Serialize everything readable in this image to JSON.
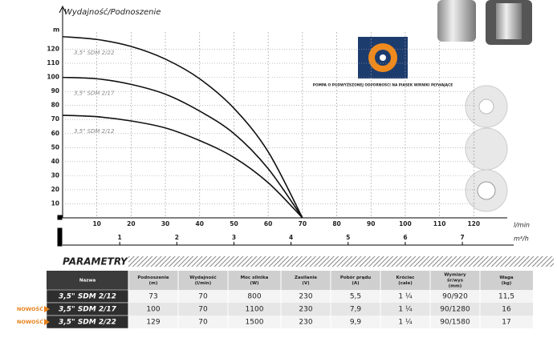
{
  "chart_data": {
    "type": "line",
    "title": "Wydajność/Podnoszenie",
    "y_label": "m",
    "x_label": "l/min",
    "x2_label": "m³/h",
    "x": [
      0,
      10,
      20,
      30,
      40,
      50,
      60,
      70
    ],
    "series": [
      {
        "name": "3,5\" SDM 2/22",
        "color": "#111111",
        "values": [
          129,
          127,
          122,
          113,
          99,
          78,
          47,
          0
        ]
      },
      {
        "name": "3,5\" SDM 2/17",
        "color": "#111111",
        "values": [
          100,
          99,
          95,
          88,
          76,
          60,
          35,
          0
        ]
      },
      {
        "name": "3,5\" SDM 2/12",
        "color": "#111111",
        "values": [
          73,
          72,
          69,
          64,
          55,
          43,
          25,
          0
        ]
      }
    ],
    "xlim": [
      0,
      130
    ],
    "xticks": [
      10,
      20,
      30,
      40,
      50,
      60,
      70,
      80,
      90,
      100,
      110,
      120
    ],
    "x2lim": [
      0,
      7.8
    ],
    "x2ticks": [
      1,
      2,
      3,
      4,
      5,
      6,
      7
    ],
    "ylim": [
      0,
      130
    ],
    "yticks": [
      10,
      20,
      30,
      40,
      50,
      60,
      70,
      80,
      90,
      100,
      110,
      120
    ],
    "grid": true
  },
  "badge": "POMPA O PODWYŻSZONEJ ODPORNOŚCI NA PIASEK WIRNIKI PŁYWAJĄCE",
  "section_title": "PARAMETRY",
  "table": {
    "header": [
      [
        "Nazwa"
      ],
      [
        "Podnoszenie",
        "(m)"
      ],
      [
        "Wydajność",
        "(l/min)"
      ],
      [
        "Moc silnika",
        "(W)"
      ],
      [
        "Zasilanie",
        "(V)"
      ],
      [
        "Pobór prądu",
        "(A)"
      ],
      [
        "Króciec",
        "(cale)"
      ],
      [
        "Wymiary",
        "śr/wys",
        "(mm)"
      ],
      [
        "Waga",
        "(kg)"
      ]
    ],
    "rows": [
      [
        "3,5\" SDM 2/12",
        "73",
        "70",
        "800",
        "230",
        "5,5",
        "1 ¼",
        "90/920",
        "11,5"
      ],
      [
        "3,5\" SDM 2/17",
        "100",
        "70",
        "1100",
        "230",
        "7,9",
        "1 ¼",
        "90/1280",
        "16"
      ],
      [
        "3,5\" SDM 2/22",
        "129",
        "70",
        "1500",
        "230",
        "9,9",
        "1 ¼",
        "90/1580",
        "17"
      ]
    ],
    "row_tags": [
      null,
      "NOWOŚĆ",
      "NOWOŚĆ"
    ]
  }
}
